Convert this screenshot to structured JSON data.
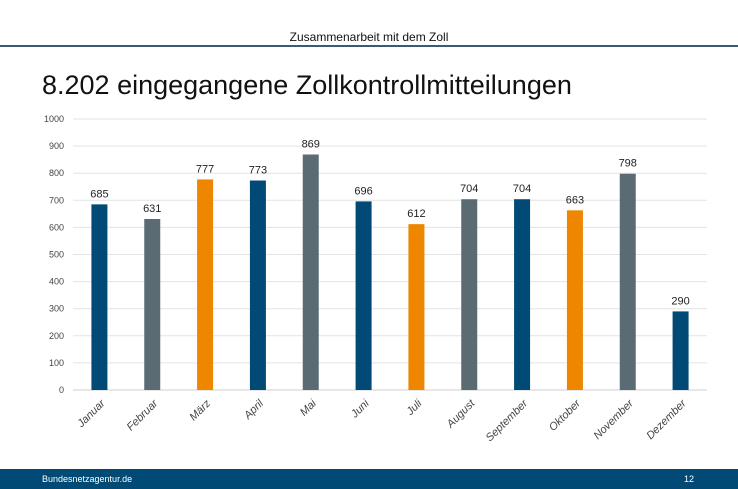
{
  "header": {
    "section": "Zusammenarbeit mit dem Zoll"
  },
  "footer": {
    "site": "Bundesnetzagentur.de",
    "page": "12"
  },
  "colors": {
    "blue": "#004a75",
    "gray": "#5a6b73",
    "orange": "#ee8600"
  },
  "chart_data": {
    "type": "bar",
    "title": "8.202 eingegangene Zollkontrollmitteilungen",
    "categories": [
      "Januar",
      "Februar",
      "März",
      "April",
      "Mai",
      "Juni",
      "Juli",
      "August",
      "September",
      "Oktober",
      "November",
      "Dezember"
    ],
    "values": [
      685,
      631,
      777,
      773,
      869,
      696,
      612,
      704,
      704,
      663,
      798,
      290
    ],
    "bar_colors": [
      "blue",
      "gray",
      "orange",
      "blue",
      "gray",
      "blue",
      "orange",
      "gray",
      "blue",
      "orange",
      "gray",
      "blue"
    ],
    "ylim": [
      0,
      1000
    ],
    "yticks": [
      0,
      100,
      200,
      300,
      400,
      500,
      600,
      700,
      800,
      900,
      1000
    ],
    "grid": true,
    "xlabel": "",
    "ylabel": ""
  }
}
